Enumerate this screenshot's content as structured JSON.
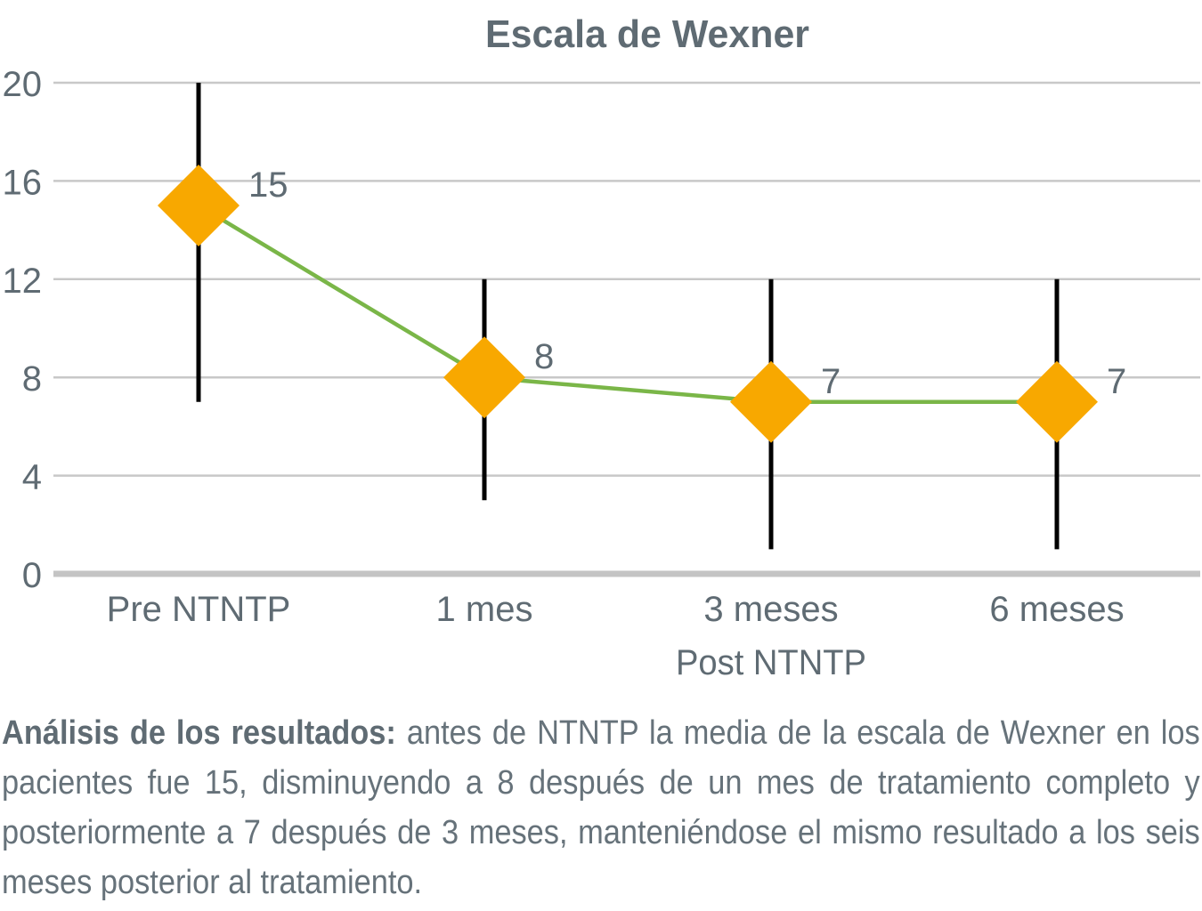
{
  "chart_data": {
    "type": "line",
    "title": "Escala de Wexner",
    "categories": [
      "Pre NTNTP",
      "1 mes",
      "3 meses",
      "6 meses"
    ],
    "group_label": "Post NTNTP",
    "series": [
      {
        "values": [
          15,
          8,
          7,
          7
        ],
        "error_low": [
          7,
          3,
          1,
          1
        ],
        "error_high": [
          20,
          12,
          12,
          12
        ]
      }
    ],
    "data_labels": [
      "15",
      "8",
      "7",
      "7"
    ],
    "yticks": [
      "0",
      "4",
      "8",
      "12",
      "16",
      "20"
    ],
    "ylim": [
      0,
      20
    ],
    "grid": true,
    "legend": "none",
    "colors": {
      "line": "#7ab648",
      "marker": "#f8a800",
      "error_bar": "#000000",
      "grid": "#c8c8c8",
      "axis": "#c4c4c4",
      "text": "#5f6b73"
    }
  },
  "caption": {
    "lead": "Análisis de los resultados:",
    "text": " antes de NTNTP la media de la escala de Wexner en los pacientes fue 15, disminuyendo a 8 después de un mes de tratamiento completo y posteriormente a 7 después de 3 meses, manteniéndose el mismo resultado a los seis meses posterior al tratamiento."
  }
}
